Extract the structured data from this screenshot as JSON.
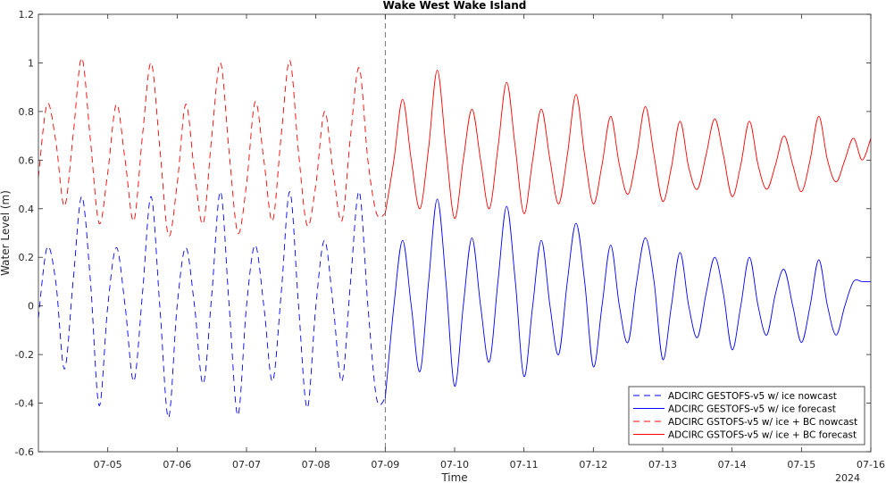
{
  "chart_data": {
    "type": "line",
    "title": "Wake West Wake Island",
    "xlabel": "Time",
    "ylabel": "Water Level (m)",
    "year_label": "2024",
    "xlim": [
      "07-04",
      "07-16"
    ],
    "ylim": [
      -0.6,
      1.2
    ],
    "x_ticks": [
      "07-05",
      "07-06",
      "07-07",
      "07-08",
      "07-09",
      "07-10",
      "07-11",
      "07-12",
      "07-13",
      "07-14",
      "07-15",
      "07-16"
    ],
    "y_ticks": [
      "-0.6",
      "-0.4",
      "-0.2",
      "0",
      "0.2",
      "0.4",
      "0.6",
      "0.8",
      "1",
      "1.2"
    ],
    "nowcast_forecast_boundary": "07-09 00:00",
    "grid": false,
    "legend_position": "bottom-right",
    "series": [
      {
        "name": "ADCIRC GESTOFS-v5 w/ ice nowcast",
        "color": "#0000ff",
        "style": "dashed",
        "x": [
          "07-04 00:00",
          "07-04 03:00",
          "07-04 06:00",
          "07-04 09:00",
          "07-04 12:00",
          "07-04 15:00",
          "07-04 18:00",
          "07-04 21:00",
          "07-05 00:00",
          "07-05 03:00",
          "07-05 06:00",
          "07-05 09:00",
          "07-05 12:00",
          "07-05 15:00",
          "07-05 18:00",
          "07-05 21:00",
          "07-06 00:00",
          "07-06 03:00",
          "07-06 06:00",
          "07-06 09:00",
          "07-06 12:00",
          "07-06 15:00",
          "07-06 18:00",
          "07-06 21:00",
          "07-07 00:00",
          "07-07 03:00",
          "07-07 06:00",
          "07-07 09:00",
          "07-07 12:00",
          "07-07 15:00",
          "07-07 18:00",
          "07-07 21:00",
          "07-08 00:00",
          "07-08 03:00",
          "07-08 06:00",
          "07-08 09:00",
          "07-08 12:00",
          "07-08 15:00",
          "07-08 18:00",
          "07-08 21:00",
          "07-09 00:00"
        ],
        "y": [
          -0.05,
          0.24,
          0.1,
          -0.26,
          0.1,
          0.45,
          0.1,
          -0.41,
          0.0,
          0.24,
          0.0,
          -0.31,
          0.05,
          0.45,
          0.0,
          -0.46,
          0.0,
          0.24,
          0.0,
          -0.32,
          0.05,
          0.47,
          0.0,
          -0.45,
          0.0,
          0.25,
          0.0,
          -0.31,
          0.05,
          0.47,
          0.0,
          -0.42,
          0.0,
          0.27,
          0.0,
          -0.31,
          0.1,
          0.47,
          0.0,
          -0.38,
          -0.38
        ]
      },
      {
        "name": "ADCIRC GESTOFS-v5 w/ ice forecast",
        "color": "#0000ff",
        "style": "solid",
        "x": [
          "07-09 00:00",
          "07-09 03:00",
          "07-09 06:00",
          "07-09 09:00",
          "07-09 12:00",
          "07-09 15:00",
          "07-09 18:00",
          "07-09 21:00",
          "07-10 00:00",
          "07-10 03:00",
          "07-10 06:00",
          "07-10 09:00",
          "07-10 12:00",
          "07-10 15:00",
          "07-10 18:00",
          "07-10 21:00",
          "07-11 00:00",
          "07-11 03:00",
          "07-11 06:00",
          "07-11 09:00",
          "07-11 12:00",
          "07-11 15:00",
          "07-11 18:00",
          "07-11 21:00",
          "07-12 00:00",
          "07-12 03:00",
          "07-12 06:00",
          "07-12 09:00",
          "07-12 12:00",
          "07-12 15:00",
          "07-12 18:00",
          "07-12 21:00",
          "07-13 00:00",
          "07-13 03:00",
          "07-13 06:00",
          "07-13 09:00",
          "07-13 12:00",
          "07-13 15:00",
          "07-13 18:00",
          "07-13 21:00",
          "07-14 00:00",
          "07-14 03:00",
          "07-14 06:00",
          "07-14 09:00",
          "07-14 12:00",
          "07-14 15:00",
          "07-14 18:00",
          "07-14 21:00",
          "07-15 00:00",
          "07-15 03:00",
          "07-15 06:00",
          "07-15 09:00",
          "07-15 12:00",
          "07-15 15:00",
          "07-15 18:00",
          "07-15 21:00",
          "07-16 00:00"
        ],
        "y": [
          -0.38,
          0.0,
          0.27,
          0.0,
          -0.27,
          0.1,
          0.44,
          0.1,
          -0.33,
          0.0,
          0.28,
          0.0,
          -0.23,
          0.1,
          0.41,
          0.1,
          -0.29,
          0.0,
          0.27,
          0.0,
          -0.2,
          0.1,
          0.34,
          0.1,
          -0.25,
          0.0,
          0.25,
          0.0,
          -0.15,
          0.1,
          0.28,
          0.1,
          -0.22,
          0.0,
          0.22,
          0.0,
          -0.13,
          0.05,
          0.2,
          0.05,
          -0.18,
          0.0,
          0.2,
          0.0,
          -0.12,
          0.05,
          0.15,
          0.0,
          -0.15,
          0.0,
          0.19,
          0.0,
          -0.12,
          0.0,
          0.1,
          0.1,
          0.1
        ]
      },
      {
        "name": "ADCIRC GSTOFS-v5 w/ ice + BC nowcast",
        "color": "#ff0000",
        "style": "dashed",
        "x": [
          "07-04 00:00",
          "07-04 03:00",
          "07-04 06:00",
          "07-04 09:00",
          "07-04 12:00",
          "07-04 15:00",
          "07-04 18:00",
          "07-04 21:00",
          "07-05 00:00",
          "07-05 03:00",
          "07-05 06:00",
          "07-05 09:00",
          "07-05 12:00",
          "07-05 15:00",
          "07-05 18:00",
          "07-05 21:00",
          "07-06 00:00",
          "07-06 03:00",
          "07-06 06:00",
          "07-06 09:00",
          "07-06 12:00",
          "07-06 15:00",
          "07-06 18:00",
          "07-06 21:00",
          "07-07 00:00",
          "07-07 03:00",
          "07-07 06:00",
          "07-07 09:00",
          "07-07 12:00",
          "07-07 15:00",
          "07-07 18:00",
          "07-07 21:00",
          "07-08 00:00",
          "07-08 03:00",
          "07-08 06:00",
          "07-08 09:00",
          "07-08 12:00",
          "07-08 15:00",
          "07-08 18:00",
          "07-08 21:00",
          "07-09 00:00"
        ],
        "y": [
          0.53,
          0.83,
          0.68,
          0.41,
          0.7,
          1.02,
          0.68,
          0.34,
          0.55,
          0.83,
          0.6,
          0.35,
          0.7,
          1.0,
          0.65,
          0.29,
          0.5,
          0.83,
          0.55,
          0.34,
          0.7,
          1.0,
          0.63,
          0.3,
          0.5,
          0.84,
          0.6,
          0.35,
          0.7,
          1.01,
          0.63,
          0.33,
          0.5,
          0.8,
          0.55,
          0.35,
          0.7,
          0.98,
          0.6,
          0.38,
          0.38
        ]
      },
      {
        "name": "ADCIRC GSTOFS-v5 w/ ice + BC forecast",
        "color": "#ff0000",
        "style": "solid",
        "x": [
          "07-09 00:00",
          "07-09 03:00",
          "07-09 06:00",
          "07-09 09:00",
          "07-09 12:00",
          "07-09 15:00",
          "07-09 18:00",
          "07-09 21:00",
          "07-10 00:00",
          "07-10 03:00",
          "07-10 06:00",
          "07-10 09:00",
          "07-10 12:00",
          "07-10 15:00",
          "07-10 18:00",
          "07-10 21:00",
          "07-11 00:00",
          "07-11 03:00",
          "07-11 06:00",
          "07-11 09:00",
          "07-11 12:00",
          "07-11 15:00",
          "07-11 18:00",
          "07-11 21:00",
          "07-12 00:00",
          "07-12 03:00",
          "07-12 06:00",
          "07-12 09:00",
          "07-12 12:00",
          "07-12 15:00",
          "07-12 18:00",
          "07-12 21:00",
          "07-13 00:00",
          "07-13 03:00",
          "07-13 06:00",
          "07-13 09:00",
          "07-13 12:00",
          "07-13 15:00",
          "07-13 18:00",
          "07-13 21:00",
          "07-14 00:00",
          "07-14 03:00",
          "07-14 06:00",
          "07-14 09:00",
          "07-14 12:00",
          "07-14 15:00",
          "07-14 18:00",
          "07-14 21:00",
          "07-15 00:00",
          "07-15 03:00",
          "07-15 06:00",
          "07-15 09:00",
          "07-15 12:00",
          "07-15 15:00",
          "07-15 18:00",
          "07-15 21:00",
          "07-16 00:00"
        ],
        "y": [
          0.38,
          0.6,
          0.85,
          0.6,
          0.4,
          0.65,
          0.97,
          0.65,
          0.36,
          0.6,
          0.81,
          0.6,
          0.4,
          0.65,
          0.92,
          0.65,
          0.38,
          0.6,
          0.81,
          0.6,
          0.42,
          0.62,
          0.87,
          0.62,
          0.42,
          0.58,
          0.78,
          0.58,
          0.46,
          0.62,
          0.82,
          0.62,
          0.43,
          0.57,
          0.76,
          0.57,
          0.48,
          0.62,
          0.77,
          0.62,
          0.45,
          0.58,
          0.76,
          0.58,
          0.48,
          0.58,
          0.7,
          0.58,
          0.47,
          0.6,
          0.78,
          0.6,
          0.51,
          0.6,
          0.69,
          0.6,
          0.69
        ]
      }
    ]
  }
}
